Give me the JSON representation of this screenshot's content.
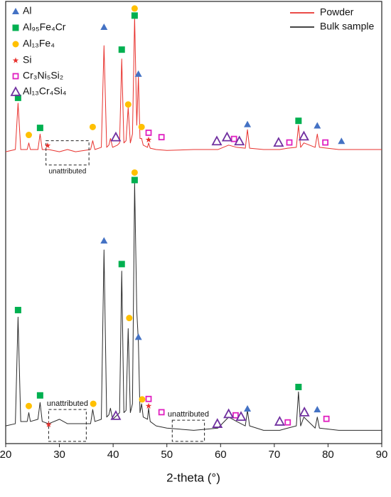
{
  "chart_data": {
    "type": "line",
    "xlabel": "2-theta (°)",
    "xlim": [
      20,
      90
    ],
    "xticks": [
      20,
      30,
      40,
      50,
      60,
      70,
      80,
      90
    ],
    "ylim": [
      0,
      100
    ],
    "legend": "top-right",
    "series": [
      {
        "name": "Powder",
        "color": "#e8322e",
        "x": [
          20,
          21.8,
          22.3,
          22.8,
          24,
          24.3,
          24.6,
          26,
          26.4,
          26.8,
          28,
          30,
          31.5,
          33,
          35.8,
          36.2,
          36.6,
          37.8,
          38.3,
          38.8,
          39.2,
          39.5,
          39.9,
          40.8,
          41.2,
          41.6,
          42,
          42.4,
          42.8,
          43.2,
          43.6,
          44.0,
          44.4,
          44.7,
          45.0,
          45.3,
          45.6,
          46.4,
          46.6,
          46.9,
          48,
          50,
          55,
          59.5,
          61.5,
          63,
          64.6,
          65,
          65.4,
          68,
          71,
          72.5,
          74.1,
          74.5,
          74.9,
          75.5,
          77.6,
          78,
          78.4,
          82,
          85,
          90
        ],
        "values": [
          66,
          66.5,
          77,
          66.5,
          66.5,
          68,
          66.5,
          66.5,
          70,
          66.5,
          66.5,
          66,
          66.5,
          66,
          66.5,
          68.5,
          66.5,
          67,
          90,
          67,
          67.5,
          69,
          67,
          67.5,
          68,
          87,
          68,
          68.5,
          76,
          68,
          70,
          96.5,
          72,
          83,
          69,
          69,
          67.5,
          67,
          68,
          66.8,
          66.5,
          66.3,
          66.5,
          66.5,
          67.5,
          67,
          66.8,
          71,
          66.8,
          66.5,
          66.5,
          66.8,
          67,
          72,
          67,
          68,
          67,
          70,
          67,
          66.5,
          66.5,
          66.5
        ]
      },
      {
        "name": "Bulk sample",
        "color": "#2b2b2b",
        "x": [
          20,
          21.8,
          22.3,
          22.8,
          24,
          24.3,
          24.6,
          26,
          26.4,
          26.8,
          28,
          30,
          31.5,
          33,
          35.8,
          36.2,
          36.6,
          37.8,
          38.3,
          38.8,
          39.2,
          39.5,
          39.9,
          40.8,
          41.2,
          41.6,
          42,
          42.4,
          42.8,
          43.2,
          43.6,
          44.0,
          44.4,
          44.7,
          45.0,
          45.3,
          45.6,
          46.4,
          46.6,
          46.9,
          48,
          50,
          55,
          59.5,
          61.5,
          63,
          64.6,
          65,
          65.4,
          68,
          71,
          72.5,
          74.1,
          74.5,
          74.9,
          75.5,
          77.6,
          78,
          78.4,
          82,
          85,
          90
        ],
        "values": [
          4,
          4.5,
          28.6,
          5,
          5,
          7,
          5,
          5.5,
          9.3,
          5,
          4.5,
          5.5,
          4.5,
          4.5,
          4.5,
          7.7,
          5,
          5.5,
          43.8,
          6,
          6.5,
          8,
          5.5,
          6.5,
          7,
          39,
          7,
          7.5,
          26,
          7,
          9,
          59,
          30,
          23,
          7,
          9,
          6,
          5.5,
          8,
          5,
          4,
          3.5,
          3,
          3.5,
          6,
          5,
          4,
          7.5,
          4,
          3,
          3,
          3.5,
          4,
          11.7,
          4,
          6,
          3.5,
          6,
          3.5,
          3,
          3,
          3
        ]
      }
    ],
    "phases": [
      {
        "name": "Al",
        "symbol": "triangle",
        "color": "#4472c4"
      },
      {
        "name": "Al₉₅Fe₄Cr",
        "symbol": "square",
        "color": "#00b050"
      },
      {
        "name": "Al₁₃Fe₄",
        "symbol": "circle",
        "color": "#ffc000"
      },
      {
        "name": "Si",
        "symbol": "star",
        "color": "#e8322e"
      },
      {
        "name": "Cr₃Ni₅Si₂",
        "symbol": "open-square",
        "color": "#e020c0"
      },
      {
        "name": "Al₁₃Cr₄Si₄",
        "symbol": "open-triangle",
        "color": "#7030a0"
      }
    ],
    "markers": [
      {
        "phase": 0,
        "x": 38.3,
        "y": 94.2
      },
      {
        "phase": 0,
        "x": 44.7,
        "y": 83.6
      },
      {
        "phase": 0,
        "x": 65,
        "y": 72.2
      },
      {
        "phase": 0,
        "x": 78,
        "y": 71.9
      },
      {
        "phase": 0,
        "x": 82.5,
        "y": 68.4
      },
      {
        "phase": 1,
        "x": 22.3,
        "y": 78.2
      },
      {
        "phase": 1,
        "x": 26.4,
        "y": 71.4
      },
      {
        "phase": 1,
        "x": 41.6,
        "y": 89.1
      },
      {
        "phase": 1,
        "x": 44,
        "y": 96.8
      },
      {
        "phase": 1,
        "x": 74.5,
        "y": 73
      },
      {
        "phase": 2,
        "x": 24.3,
        "y": 69.8
      },
      {
        "phase": 2,
        "x": 36.2,
        "y": 71.6
      },
      {
        "phase": 2,
        "x": 42.8,
        "y": 76.7
      },
      {
        "phase": 2,
        "x": 44,
        "y": 98.4
      },
      {
        "phase": 2,
        "x": 45.3,
        "y": 71.6
      },
      {
        "phase": 3,
        "x": 27.8,
        "y": 67.4
      },
      {
        "phase": 3,
        "x": 46.6,
        "y": 68.7
      },
      {
        "phase": 4,
        "x": 46.6,
        "y": 70.3
      },
      {
        "phase": 4,
        "x": 49,
        "y": 69.3
      },
      {
        "phase": 4,
        "x": 62.5,
        "y": 68.9
      },
      {
        "phase": 4,
        "x": 72.8,
        "y": 68.1
      },
      {
        "phase": 4,
        "x": 79.5,
        "y": 68.1
      },
      {
        "phase": 5,
        "x": 40.5,
        "y": 69.3
      },
      {
        "phase": 5,
        "x": 59.3,
        "y": 68.4
      },
      {
        "phase": 5,
        "x": 61.2,
        "y": 69.3
      },
      {
        "phase": 5,
        "x": 63.5,
        "y": 68.4
      },
      {
        "phase": 5,
        "x": 70.8,
        "y": 68.1
      },
      {
        "phase": 5,
        "x": 75.5,
        "y": 69.5
      },
      {
        "phase": 0,
        "x": 38.3,
        "y": 45.9
      },
      {
        "phase": 0,
        "x": 44.7,
        "y": 24.1
      },
      {
        "phase": 0,
        "x": 65,
        "y": 7.9
      },
      {
        "phase": 0,
        "x": 78,
        "y": 7.7
      },
      {
        "phase": 1,
        "x": 22.3,
        "y": 30.2
      },
      {
        "phase": 1,
        "x": 26.4,
        "y": 10.9
      },
      {
        "phase": 1,
        "x": 41.6,
        "y": 40.6
      },
      {
        "phase": 1,
        "x": 44,
        "y": 59.6
      },
      {
        "phase": 1,
        "x": 74.5,
        "y": 12.8
      },
      {
        "phase": 2,
        "x": 24.3,
        "y": 8.5
      },
      {
        "phase": 2,
        "x": 36.3,
        "y": 9
      },
      {
        "phase": 2,
        "x": 43,
        "y": 28.4
      },
      {
        "phase": 2,
        "x": 44,
        "y": 61.3
      },
      {
        "phase": 2,
        "x": 45.4,
        "y": 10
      },
      {
        "phase": 3,
        "x": 28,
        "y": 4.3
      },
      {
        "phase": 3,
        "x": 46.6,
        "y": 8.5
      },
      {
        "phase": 4,
        "x": 46.6,
        "y": 10.1
      },
      {
        "phase": 4,
        "x": 49,
        "y": 7.1
      },
      {
        "phase": 4,
        "x": 62.8,
        "y": 6.4
      },
      {
        "phase": 4,
        "x": 72.5,
        "y": 4.8
      },
      {
        "phase": 4,
        "x": 79.7,
        "y": 5.6
      },
      {
        "phase": 5,
        "x": 40.5,
        "y": 6.3
      },
      {
        "phase": 5,
        "x": 59.4,
        "y": 4.5
      },
      {
        "phase": 5,
        "x": 61.5,
        "y": 6.7
      },
      {
        "phase": 5,
        "x": 63.8,
        "y": 6.1
      },
      {
        "phase": 5,
        "x": 71,
        "y": 5
      },
      {
        "phase": 5,
        "x": 75.6,
        "y": 7.1
      }
    ],
    "regions": [
      {
        "label": "unattributed",
        "x": [
          27.5,
          35.5
        ],
        "y": [
          63,
          68.5
        ],
        "label_pos": "below"
      },
      {
        "label": "unattributed",
        "x": [
          28,
          35
        ],
        "y": [
          0.5,
          7.7
        ],
        "label_pos": "above"
      },
      {
        "label": "unattributed",
        "x": [
          51,
          57
        ],
        "y": [
          0.5,
          5.3
        ],
        "label_pos": "above"
      }
    ]
  }
}
